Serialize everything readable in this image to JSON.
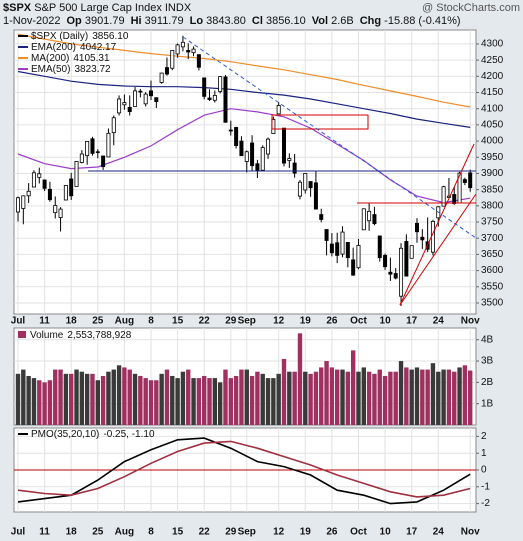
{
  "chart_data": [
    {
      "type": "candlestick",
      "title": "$SPX",
      "subtitle": "S&P 500 Large Cap Index INDX",
      "source": "@ StockCharts.com",
      "header": {
        "date": "1-Nov-2022",
        "items": [
          {
            "label": "Op",
            "value": "3901.79"
          },
          {
            "label": "Hi",
            "value": "3911.79"
          },
          {
            "label": "Lo",
            "value": "3843.80"
          },
          {
            "label": "Cl",
            "value": "3856.10"
          },
          {
            "label": "Vol",
            "value": "2.6B"
          },
          {
            "label": "Chg",
            "value": "-15.88 (-0.41%)"
          }
        ]
      },
      "price_name": "$SPX (Daily)",
      "price_label": "3856.10",
      "color": "#000000",
      "categories": [
        "Jul",
        null,
        null,
        null,
        null,
        "11",
        null,
        null,
        null,
        null,
        "18",
        null,
        null,
        null,
        null,
        "25",
        null,
        null,
        null,
        null,
        "Aug",
        null,
        null,
        null,
        null,
        "8",
        null,
        null,
        null,
        null,
        "15",
        null,
        null,
        null,
        null,
        "22",
        null,
        null,
        null,
        null,
        "29",
        null,
        null,
        "Sep",
        null,
        null,
        null,
        null,
        null,
        "12",
        null,
        null,
        null,
        null,
        "19",
        null,
        null,
        null,
        null,
        "26",
        null,
        null,
        null,
        null,
        "Oct",
        null,
        null,
        null,
        null,
        "10",
        null,
        null,
        null,
        null,
        "17",
        null,
        null,
        null,
        null,
        "24",
        null,
        null,
        null,
        null,
        null,
        "Nov"
      ],
      "open": [
        3781,
        3792,
        3831,
        3858,
        3888,
        3880,
        3851,
        3779,
        3764,
        3818,
        3883,
        3860,
        3934,
        3955,
        4007,
        3966,
        3954,
        3951,
        4026,
        4087,
        4112,
        4104,
        4107,
        4154,
        4115,
        4155,
        4134,
        4181,
        4227,
        4225,
        4269,
        4291,
        4280,
        4273,
        4267,
        4195,
        4133,
        4126,
        4153,
        4198,
        4034,
        4042,
        4000,
        3937,
        3994,
        3930,
        3910,
        3960,
        4023,
        4084,
        4040,
        3940,
        3932,
        3830,
        3849,
        3875,
        3871,
        3773,
        3727,
        3682,
        3686,
        3651,
        3687,
        3633,
        3609,
        3726,
        3754,
        3773,
        3707,
        3647,
        3595,
        3591,
        3521,
        3690,
        3638,
        3746,
        3703,
        3689,
        3657,
        3763,
        3799,
        3826,
        3835,
        3809,
        3881,
        3901.79
      ],
      "high": [
        3829,
        3832,
        3870,
        3910,
        3918,
        3880,
        3874,
        3829,
        3796,
        3863,
        3902,
        3938,
        3972,
        4000,
        4013,
        3975,
        3954,
        4039,
        4079,
        4141,
        4144,
        4141,
        4167,
        4161,
        4151,
        4187,
        4134,
        4211,
        4258,
        4280,
        4301,
        4325,
        4302,
        4292,
        4267,
        4195,
        4160,
        4156,
        4200,
        4204,
        4063,
        4044,
        4015,
        3971,
        4018,
        3942,
        3987,
        4011,
        4076,
        4120,
        4040,
        3962,
        3960,
        3880,
        3900,
        3876,
        3907,
        3791,
        3727,
        3716,
        3717,
        3737,
        3687,
        3671,
        3698,
        3791,
        3807,
        3797,
        3707,
        3653,
        3640,
        3608,
        3685,
        3712,
        3677,
        3762,
        3728,
        3764,
        3757,
        3799,
        3862,
        3886,
        3859,
        3905,
        3887,
        3911.79
      ],
      "low": [
        3752,
        3743,
        3809,
        3858,
        3869,
        3846,
        3813,
        3761,
        3721,
        3817,
        3818,
        3860,
        3931,
        3927,
        3955,
        3947,
        3911,
        3951,
        3987,
        4079,
        4097,
        4079,
        4107,
        4135,
        4107,
        4127,
        4102,
        4177,
        4202,
        4219,
        4257,
        4277,
        4253,
        4262,
        4218,
        4129,
        4124,
        4119,
        4147,
        4057,
        4017,
        3977,
        3954,
        3903,
        3907,
        3886,
        3906,
        3945,
        4023,
        4084,
        3922,
        3917,
        3887,
        3820,
        3838,
        3828,
        3789,
        3749,
        3647,
        3644,
        3623,
        3641,
        3610,
        3584,
        3604,
        3726,
        3723,
        3740,
        3628,
        3602,
        3568,
        3573,
        3491,
        3583,
        3638,
        3686,
        3667,
        3657,
        3647,
        3736,
        3799,
        3824,
        3803,
        3808,
        3864,
        3843.8
      ],
      "close": [
        3825,
        3831,
        3845,
        3902,
        3899,
        3854,
        3819,
        3801,
        3790,
        3863,
        3831,
        3937,
        3960,
        3999,
        3962,
        3967,
        3921,
        4024,
        4072,
        4130,
        4119,
        4091,
        4155,
        4152,
        4145,
        4140,
        4122,
        4210,
        4207,
        4280,
        4297,
        4305,
        4275,
        4284,
        4228,
        4138,
        4128,
        4141,
        4199,
        4058,
        4031,
        3986,
        3955,
        3967,
        3924,
        3908,
        3980,
        4006,
        4067,
        4110,
        3932,
        3946,
        3901,
        3873,
        3900,
        3856,
        3790,
        3758,
        3693,
        3655,
        3647,
        3719,
        3640,
        3586,
        3678,
        3791,
        3783,
        3745,
        3640,
        3612,
        3589,
        3577,
        3669,
        3583,
        3677,
        3720,
        3695,
        3666,
        3752,
        3797,
        3859,
        3830,
        3807,
        3901,
        3872,
        3856.1
      ],
      "series": [
        {
          "name": "EMA(200)",
          "color": "#1a237e",
          "x": [
            0,
            5,
            10,
            15,
            20,
            25,
            30,
            35,
            40,
            45,
            50,
            55,
            60,
            65,
            70,
            75,
            80,
            85
          ],
          "values": [
            4215,
            4200,
            4185,
            4175,
            4170,
            4168,
            4168,
            4165,
            4160,
            4150,
            4142,
            4130,
            4115,
            4100,
            4085,
            4068,
            4055,
            4042.17
          ]
        },
        {
          "name": "MA(200)",
          "color": "#f08c28",
          "x": [
            0,
            5,
            10,
            15,
            20,
            25,
            30,
            35,
            40,
            45,
            50,
            55,
            60,
            65,
            70,
            75,
            80,
            85
          ],
          "values": [
            4330,
            4315,
            4300,
            4290,
            4280,
            4270,
            4262,
            4255,
            4245,
            4232,
            4220,
            4205,
            4190,
            4172,
            4155,
            4138,
            4120,
            4105.31
          ]
        },
        {
          "name": "EMA(50)",
          "color": "#9c3cc8",
          "x": [
            0,
            5,
            10,
            15,
            20,
            25,
            30,
            35,
            40,
            45,
            50,
            55,
            60,
            65,
            70,
            75,
            80,
            85
          ],
          "values": [
            3960,
            3930,
            3915,
            3920,
            3950,
            3985,
            4035,
            4080,
            4100,
            4090,
            4075,
            4040,
            3990,
            3940,
            3880,
            3830,
            3810,
            3823.72
          ]
        }
      ],
      "ylim": [
        3466,
        4343
      ],
      "yticks": [
        3500,
        3550,
        3600,
        3650,
        3700,
        3750,
        3800,
        3850,
        3900,
        3950,
        4000,
        4050,
        4100,
        4150,
        4200,
        4250,
        4300
      ],
      "grid": true
    },
    {
      "type": "bar",
      "title": "Volume",
      "value_label": "2,553,788,928",
      "up_color": "#3a3a3a",
      "down_color": "#a03060",
      "values": [
        2400000000.0,
        2600000000.0,
        2300000000.0,
        2200000000.0,
        2100000000.0,
        2000000000.0,
        2100000000.0,
        2600000000.0,
        2600000000.0,
        2400000000.0,
        2400000000.0,
        2600000000.0,
        2500000000.0,
        2400000000.0,
        2400000000.0,
        2100000000.0,
        2300000000.0,
        2500000000.0,
        2600000000.0,
        2800000000.0,
        2700000000.0,
        2600000000.0,
        2400000000.0,
        2300000000.0,
        2200000000.0,
        2100000000.0,
        2100000000.0,
        2400000000.0,
        2600000000.0,
        2300000000.0,
        2200000000.0,
        2500000000.0,
        2600000000.0,
        2200000000.0,
        2200000000.0,
        2300000000.0,
        2200000000.0,
        2200000000.0,
        2000000000.0,
        2600000000.0,
        2200000000.0,
        2300000000.0,
        2600000000.0,
        2600000000.0,
        2300000000.0,
        2500000000.0,
        2400000000.0,
        2200000000.0,
        2200000000.0,
        2400000000.0,
        3100000000.0,
        2500000000.0,
        2500000000.0,
        4300000000.0,
        2500000000.0,
        2400000000.0,
        2500000000.0,
        2700000000.0,
        3000000000.0,
        2700000000.0,
        2600000000.0,
        2600000000.0,
        2500000000.0,
        3500000000.0,
        2500000000.0,
        2700000000.0,
        2500000000.0,
        2400000000.0,
        2600000000.0,
        2300000000.0,
        2500000000.0,
        2500000000.0,
        3000000000.0,
        2700000000.0,
        2600000000.0,
        2700000000.0,
        2600000000.0,
        2600000000.0,
        2900000000.0,
        2500000000.0,
        2600000000.0,
        2600000000.0,
        2500000000.0,
        2700000000.0,
        2800000000.0,
        2553788928
      ],
      "ylim": [
        0,
        4550000000
      ],
      "yticks": [
        {
          "value": 1000000000,
          "label": "1B"
        },
        {
          "value": 2000000000,
          "label": "2B"
        },
        {
          "value": 3000000000,
          "label": "3B"
        },
        {
          "value": 4000000000,
          "label": "4B"
        }
      ],
      "grid": true
    },
    {
      "type": "line",
      "title": "PMO(35,20,10)",
      "values_label": "-0.25, -1.10",
      "zero_color": "#c00000",
      "series": [
        {
          "color": "#000000",
          "x": [
            0,
            5,
            10,
            15,
            20,
            25,
            30,
            35,
            40,
            45,
            50,
            55,
            60,
            65,
            70,
            75,
            80,
            85
          ],
          "values": [
            -1.9,
            -1.7,
            -1.5,
            -0.6,
            0.5,
            1.2,
            1.8,
            1.9,
            1.3,
            0.5,
            0.2,
            -0.3,
            -1.2,
            -1.5,
            -2.0,
            -1.9,
            -1.2,
            -0.25
          ]
        },
        {
          "color": "#a03040",
          "x": [
            0,
            5,
            10,
            15,
            20,
            25,
            30,
            35,
            40,
            45,
            50,
            55,
            60,
            65,
            70,
            75,
            80,
            85
          ],
          "values": [
            -1.2,
            -1.4,
            -1.5,
            -1.1,
            -0.4,
            0.4,
            1.1,
            1.6,
            1.7,
            1.3,
            0.8,
            0.3,
            -0.3,
            -0.8,
            -1.3,
            -1.6,
            -1.5,
            -1.1
          ]
        }
      ],
      "ylim": [
        -2.5,
        2.5
      ],
      "yticks": [
        -2,
        -1,
        0,
        1,
        2
      ],
      "grid": true
    }
  ]
}
